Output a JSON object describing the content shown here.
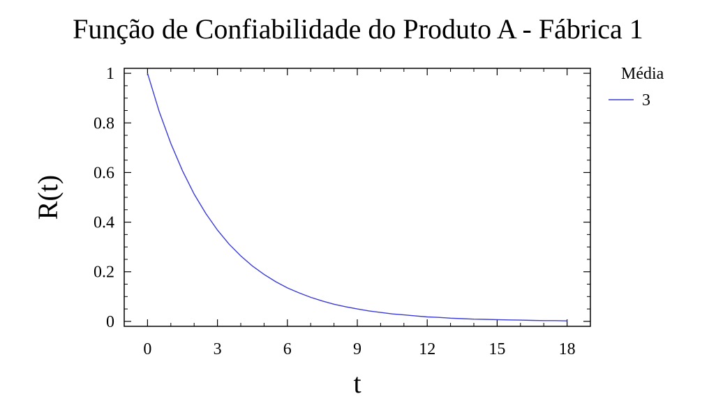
{
  "chart_data": {
    "type": "line",
    "title": "Função de Confiabilidade do Produto A - Fábrica 1",
    "xlabel": "t",
    "ylabel": "R(t)",
    "xlim": [
      -1,
      19
    ],
    "ylim": [
      -0.02,
      1.02
    ],
    "x_ticks": [
      0,
      3,
      6,
      9,
      12,
      15,
      18
    ],
    "y_ticks": [
      0,
      0.2,
      0.4,
      0.6,
      0.8,
      1
    ],
    "x_tick_labels": [
      "0",
      "3",
      "6",
      "9",
      "12",
      "15",
      "18"
    ],
    "y_tick_labels": [
      "0",
      "0.2",
      "0.4",
      "0.6",
      "0.8",
      "1"
    ],
    "grid": false,
    "legend": {
      "title": "Média",
      "position": "right-top"
    },
    "series": [
      {
        "name": "3",
        "color": "#3a3ad6",
        "x": [
          0,
          0.5,
          1,
          1.5,
          2,
          2.5,
          3,
          3.5,
          4,
          4.5,
          5,
          5.5,
          6,
          6.5,
          7,
          7.5,
          8,
          8.5,
          9,
          9.5,
          10,
          10.5,
          11,
          11.5,
          12,
          12.5,
          13,
          13.5,
          14,
          14.5,
          15,
          15.5,
          16,
          16.5,
          17,
          17.5,
          18
        ],
        "y": [
          1,
          0.846,
          0.717,
          0.607,
          0.513,
          0.435,
          0.368,
          0.311,
          0.264,
          0.223,
          0.189,
          0.16,
          0.135,
          0.115,
          0.097,
          0.082,
          0.069,
          0.059,
          0.05,
          0.042,
          0.036,
          0.03,
          0.026,
          0.022,
          0.018,
          0.016,
          0.013,
          0.011,
          0.009,
          0.008,
          0.007,
          0.006,
          0.005,
          0.004,
          0.003,
          0.003,
          0.002
        ]
      }
    ]
  }
}
